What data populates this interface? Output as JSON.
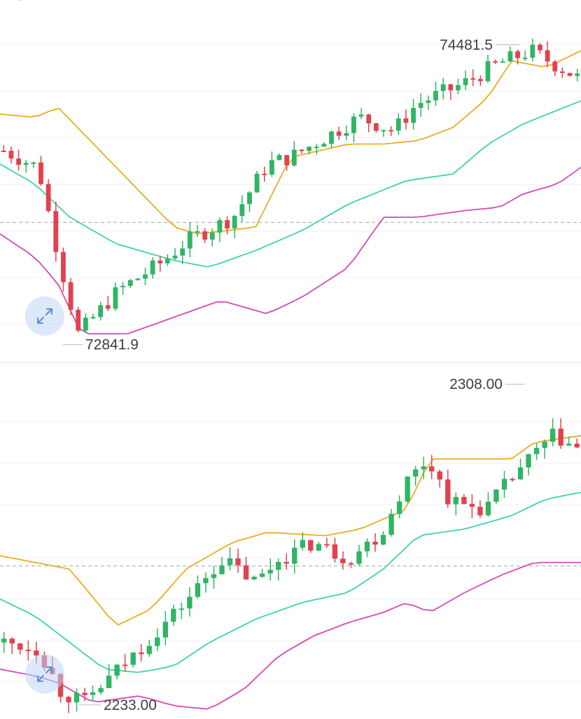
{
  "colors": {
    "up": "#2fb564",
    "down": "#e0424e",
    "upper_band": "#e9ad1f",
    "middle_band": "#3ed2ac",
    "lower_band": "#d54ab8",
    "grid": "#f0f1f4",
    "reference_line": "#a0a4ab"
  },
  "icons": {
    "expand": "expand-arrows-icon",
    "top_partial": "toolbar-icons-partial"
  },
  "chart_data": [
    {
      "type": "candlestick",
      "title": "",
      "high_label": "74481.5",
      "low_label": "72841.9",
      "high_value": 74481.5,
      "low_value": 72841.9,
      "reference_price": 73510,
      "ylim": [
        72810,
        74630
      ],
      "bollinger_bands": true,
      "grid": true
    },
    {
      "type": "candlestick",
      "title": "",
      "high_label": "2308.00",
      "low_label": "2233.00",
      "high_value": 2308.0,
      "low_value": 2233.0,
      "reference_price": 2265.5,
      "ylim": [
        2232,
        2310
      ],
      "bollinger_bands": true,
      "grid": true
    }
  ]
}
